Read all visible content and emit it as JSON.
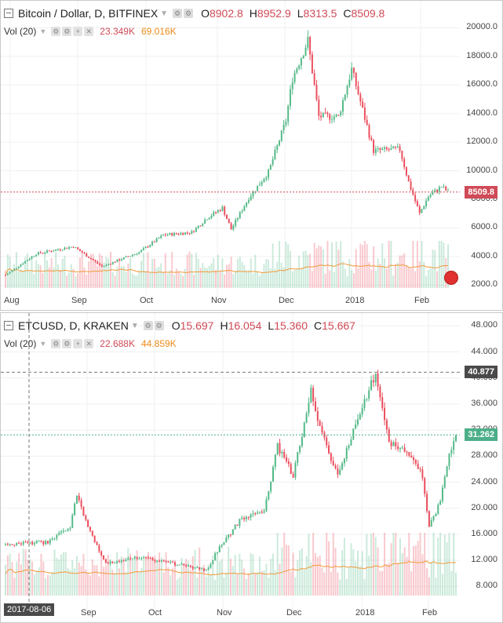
{
  "chart_data": [
    {
      "type": "candlestick",
      "title": "Bitcoin / Dollar, D, BITFINEX",
      "ohlc": {
        "O": "8902.8",
        "H": "8952.9",
        "L": "8313.5",
        "C": "8509.8"
      },
      "volume_indicator": {
        "label": "Vol (20)",
        "value": "23.349K",
        "ma": "69.016K"
      },
      "y_ticks": [
        "20000.0",
        "18000.0",
        "16000.0",
        "14000.0",
        "12000.0",
        "10000.0",
        "8000.0",
        "6000.0",
        "4000.0",
        "2000.0"
      ],
      "x_ticks": [
        "Aug",
        "Sep",
        "Oct",
        "Nov",
        "Dec",
        "2018",
        "Feb"
      ],
      "ylim": [
        1800,
        20900
      ],
      "last_price": "8509.8",
      "close_path": [
        [
          "2017-08-01",
          2700
        ],
        [
          "2017-08-15",
          4200
        ],
        [
          "2017-09-01",
          4700
        ],
        [
          "2017-09-14",
          3300
        ],
        [
          "2017-10-01",
          4300
        ],
        [
          "2017-10-12",
          5500
        ],
        [
          "2017-10-25",
          5700
        ],
        [
          "2017-11-01",
          6700
        ],
        [
          "2017-11-08",
          7400
        ],
        [
          "2017-11-12",
          5900
        ],
        [
          "2017-11-20",
          8100
        ],
        [
          "2017-11-29",
          9900
        ],
        [
          "2017-12-07",
          13500
        ],
        [
          "2017-12-10",
          16500
        ],
        [
          "2017-12-17",
          19100
        ],
        [
          "2017-12-22",
          13800
        ],
        [
          "2017-12-31",
          13800
        ],
        [
          "2018-01-06",
          17100
        ],
        [
          "2018-01-16",
          11400
        ],
        [
          "2018-01-28",
          11500
        ],
        [
          "2018-02-01",
          9200
        ],
        [
          "2018-02-06",
          7000
        ],
        [
          "2018-02-10",
          8200
        ],
        [
          "2018-02-16",
          8900
        ],
        [
          "2018-02-19",
          8509.8
        ]
      ]
    },
    {
      "type": "candlestick",
      "title": "ETCUSD, D, KRAKEN",
      "ohlc": {
        "O": "15.697",
        "H": "16.054",
        "L": "15.360",
        "C": "15.667"
      },
      "volume_indicator": {
        "label": "Vol (20)",
        "value": "22.688K",
        "ma": "44.859K"
      },
      "y_ticks": [
        "48.000",
        "44.000",
        "40.000",
        "36.000",
        "32.000",
        "28.000",
        "24.000",
        "20.000",
        "16.000",
        "12.000",
        "8.000"
      ],
      "x_ticks": [
        "Sep",
        "Oct",
        "Nov",
        "Dec",
        "2018",
        "Feb"
      ],
      "ylim": [
        6.6,
        49
      ],
      "marker_price": "40.877",
      "last_price": "31.262",
      "crosshair_date": "2017-08-06",
      "close_path": [
        [
          "2017-08-01",
          14.5
        ],
        [
          "2017-08-20",
          14.8
        ],
        [
          "2017-08-30",
          17.0
        ],
        [
          "2017-09-02",
          22.0
        ],
        [
          "2017-09-07",
          17.0
        ],
        [
          "2017-09-15",
          11.5
        ],
        [
          "2017-09-30",
          12.5
        ],
        [
          "2017-10-15",
          11.5
        ],
        [
          "2017-10-30",
          10.5
        ],
        [
          "2017-11-05",
          14.0
        ],
        [
          "2017-11-15",
          18.5
        ],
        [
          "2017-11-25",
          19.5
        ],
        [
          "2017-12-01",
          29.5
        ],
        [
          "2017-12-08",
          25.0
        ],
        [
          "2017-12-16",
          38.0
        ],
        [
          "2017-12-20",
          32.0
        ],
        [
          "2017-12-28",
          25.0
        ],
        [
          "2018-01-02",
          30.0
        ],
        [
          "2018-01-10",
          37.0
        ],
        [
          "2018-01-14",
          41.0
        ],
        [
          "2018-01-20",
          30.0
        ],
        [
          "2018-01-30",
          28.0
        ],
        [
          "2018-02-04",
          25.0
        ],
        [
          "2018-02-07",
          17.0
        ],
        [
          "2018-02-12",
          21.0
        ],
        [
          "2018-02-16",
          28.0
        ],
        [
          "2018-02-19",
          31.262
        ]
      ]
    }
  ],
  "colors": {
    "up": "#53b987",
    "down": "#eb4d5c",
    "volume_ma": "#f39a3a",
    "grid": "#f0f0f0",
    "red_line": "#d04a57",
    "green_line": "#4caf8a",
    "dark_tag": "#4a4a4a"
  },
  "icons": [
    "collapse-box-icon",
    "settings-icon",
    "remove-icon",
    "add-icon",
    "hide-icon",
    "us-flag-icon"
  ]
}
